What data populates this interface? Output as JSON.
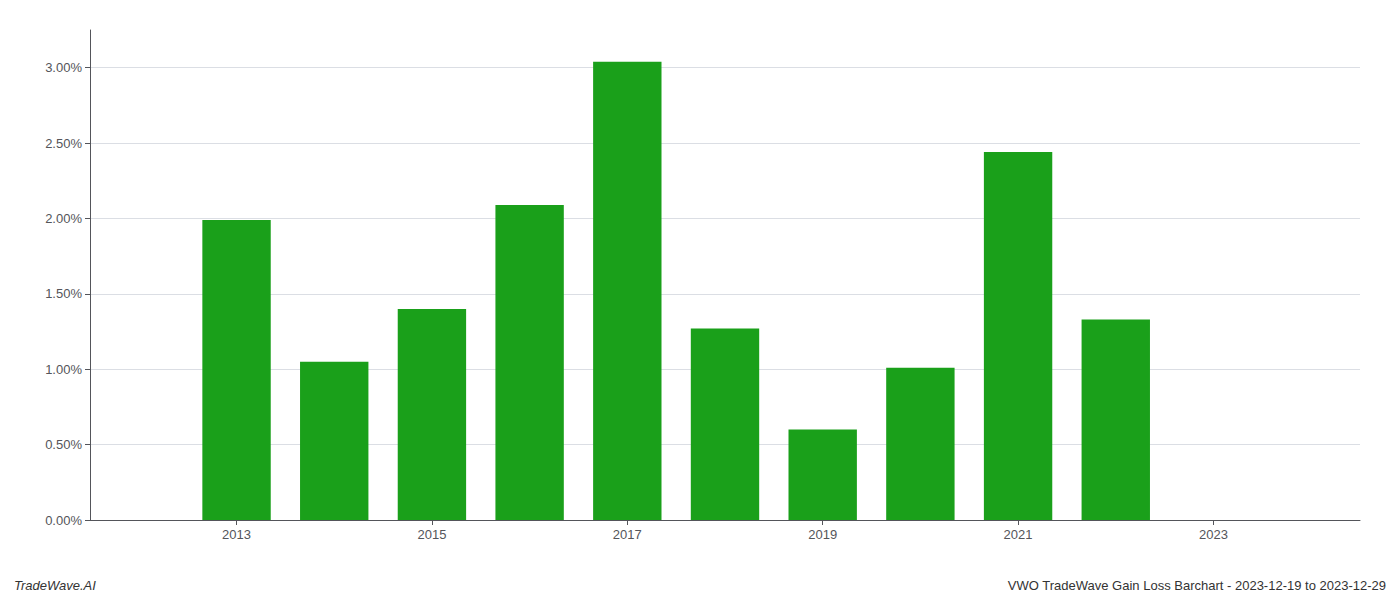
{
  "chart_data": {
    "type": "bar",
    "x": [
      2013,
      2014,
      2015,
      2016,
      2017,
      2018,
      2019,
      2020,
      2021,
      2022,
      2023
    ],
    "values": [
      0.0199,
      0.0105,
      0.014,
      0.0209,
      0.0304,
      0.0127,
      0.006,
      0.0101,
      0.0244,
      0.0133,
      0
    ],
    "color": "#1aa01a",
    "xlim": [
      2011.5,
      2024.5
    ],
    "xticks": [
      2013,
      2015,
      2017,
      2019,
      2021,
      2023
    ],
    "ylim": [
      0,
      0.0325
    ],
    "yticks": [
      {
        "value": 0,
        "label": "0.00%"
      },
      {
        "value": 0.005,
        "label": "0.50%"
      },
      {
        "value": 0.01,
        "label": "1.00%"
      },
      {
        "value": 0.015,
        "label": "1.50%"
      },
      {
        "value": 0.02,
        "label": "2.00%"
      },
      {
        "value": 0.025,
        "label": "2.50%"
      },
      {
        "value": 0.03,
        "label": "3.00%"
      }
    ],
    "grid": true,
    "annotations": [
      "TradeWave.AI",
      "VWO TradeWave Gain Loss Barchart - 2023-12-19 to 2023-12-29"
    ]
  }
}
